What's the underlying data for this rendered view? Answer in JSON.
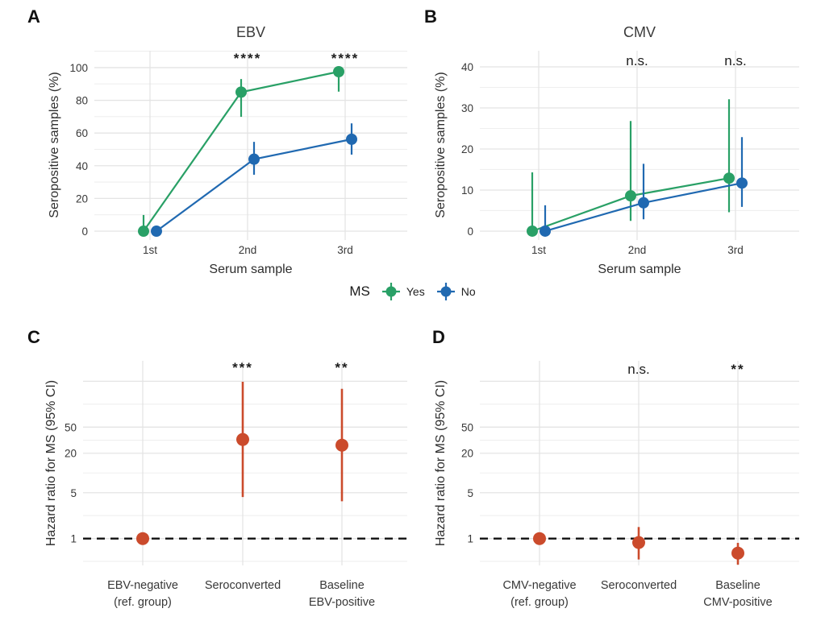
{
  "figure": {
    "background": "#ffffff",
    "colors": {
      "ms_yes": "#29a066",
      "ms_no": "#2069b1",
      "hazard": "#cb4b2c",
      "grid": "#e4e4e4",
      "grid_minor": "#efefef",
      "tick_text": "#383838",
      "axis_title": "#2e2e2e",
      "panel_title": "#3a3a3a",
      "annotation": "#1c1c1c",
      "ref_line": "#111111"
    },
    "legend": {
      "title": "MS",
      "items": [
        {
          "label": "Yes",
          "color_key": "ms_yes"
        },
        {
          "label": "No",
          "color_key": "ms_no"
        }
      ]
    }
  },
  "chart_data": [
    {
      "id": "A",
      "panel_label": "A",
      "type": "line",
      "title": "EBV",
      "xlabel": "Serum sample",
      "ylabel": "Seropositive samples (%)",
      "categories": [
        "1st",
        "2nd",
        "3rd"
      ],
      "ylim": [
        -5.4,
        110.3
      ],
      "y_ticks": [
        0,
        20,
        40,
        60,
        80,
        100
      ],
      "y_minor": [
        10,
        30,
        50,
        70,
        90,
        110
      ],
      "series": [
        {
          "name": "Yes",
          "color_key": "ms_yes",
          "values": [
            0,
            85,
            97.5
          ],
          "ci_low": [
            0,
            69.9,
            85.3
          ],
          "ci_high": [
            9.9,
            93.0,
            99.9
          ]
        },
        {
          "name": "No",
          "color_key": "ms_no",
          "values": [
            0,
            44,
            56.2
          ],
          "ci_low": [
            0,
            34.5,
            46.8
          ],
          "ci_high": [
            3.4,
            54.6,
            65.9
          ]
        }
      ],
      "annotations": [
        {
          "category": "2nd",
          "text": "****",
          "style": "stars"
        },
        {
          "category": "3rd",
          "text": "****",
          "style": "stars"
        }
      ]
    },
    {
      "id": "B",
      "panel_label": "B",
      "type": "line",
      "title": "CMV",
      "xlabel": "Serum sample",
      "ylabel": "Seropositive samples (%)",
      "categories": [
        "1st",
        "2nd",
        "3rd"
      ],
      "ylim": [
        -2.16,
        43.92
      ],
      "y_ticks": [
        0,
        10,
        20,
        30,
        40
      ],
      "y_minor": [
        5,
        15,
        25,
        35
      ],
      "series": [
        {
          "name": "Yes",
          "color_key": "ms_yes",
          "values": [
            0,
            8.6,
            12.9
          ],
          "ci_low": [
            0,
            2.5,
            4.6
          ],
          "ci_high": [
            14.3,
            26.8,
            32.1
          ]
        },
        {
          "name": "No",
          "color_key": "ms_no",
          "values": [
            0,
            6.9,
            11.7
          ],
          "ci_low": [
            0,
            2.9,
            5.9
          ],
          "ci_high": [
            6.3,
            16.4,
            22.9
          ]
        }
      ],
      "annotations": [
        {
          "category": "2nd",
          "text": "n.s.",
          "style": "ns"
        },
        {
          "category": "3rd",
          "text": "n.s.",
          "style": "ns"
        }
      ]
    },
    {
      "id": "C",
      "panel_label": "C",
      "type": "log-point",
      "title": "",
      "xlabel": "",
      "ylabel": "Hazard ratio for MS (95% CI)",
      "categories": [
        "EBV-negative\n(ref. group)",
        "Seroconverted",
        "Baseline\nEBV-positive"
      ],
      "ylim": [
        0.39,
        512.5
      ],
      "y_ticks": [
        1,
        5,
        20,
        50
      ],
      "gridlines_major": [
        1,
        5,
        20,
        50,
        250
      ],
      "gridlines_minor": [
        0.45,
        2.24,
        10,
        31.6,
        112
      ],
      "ref_line": 1,
      "points": [
        {
          "category": "EBV-negative\n(ref. group)",
          "value": 1,
          "ci_low": null,
          "ci_high": null
        },
        {
          "category": "Seroconverted",
          "value": 32.4,
          "ci_low": 4.3,
          "ci_high": 245.3
        },
        {
          "category": "Baseline\nEBV-positive",
          "value": 26.5,
          "ci_low": 3.7,
          "ci_high": 191.6
        }
      ],
      "annotations": [
        {
          "category": "Seroconverted",
          "text": "***",
          "style": "stars"
        },
        {
          "category": "Baseline\nEBV-positive",
          "text": "**",
          "style": "stars"
        }
      ]
    },
    {
      "id": "D",
      "panel_label": "D",
      "type": "log-point",
      "title": "",
      "xlabel": "",
      "ylabel": "Hazard ratio for MS (95% CI)",
      "categories": [
        "CMV-negative\n(ref. group)",
        "Seroconverted",
        "Baseline\nCMV-positive"
      ],
      "ylim": [
        0.39,
        512.5
      ],
      "y_ticks": [
        1,
        5,
        20,
        50
      ],
      "gridlines_major": [
        1,
        5,
        20,
        50,
        250
      ],
      "gridlines_minor": [
        0.45,
        2.24,
        10,
        31.6,
        112
      ],
      "ref_line": 1,
      "points": [
        {
          "category": "CMV-negative\n(ref. group)",
          "value": 1,
          "ci_low": null,
          "ci_high": null
        },
        {
          "category": "Seroconverted",
          "value": 0.87,
          "ci_low": 0.48,
          "ci_high": 1.5
        },
        {
          "category": "Baseline\nCMV-positive",
          "value": 0.6,
          "ci_low": 0.4,
          "ci_high": 0.86
        }
      ],
      "annotations": [
        {
          "category": "Seroconverted",
          "text": "n.s.",
          "style": "ns"
        },
        {
          "category": "Baseline\nCMV-positive",
          "text": "**",
          "style": "stars"
        }
      ]
    }
  ]
}
